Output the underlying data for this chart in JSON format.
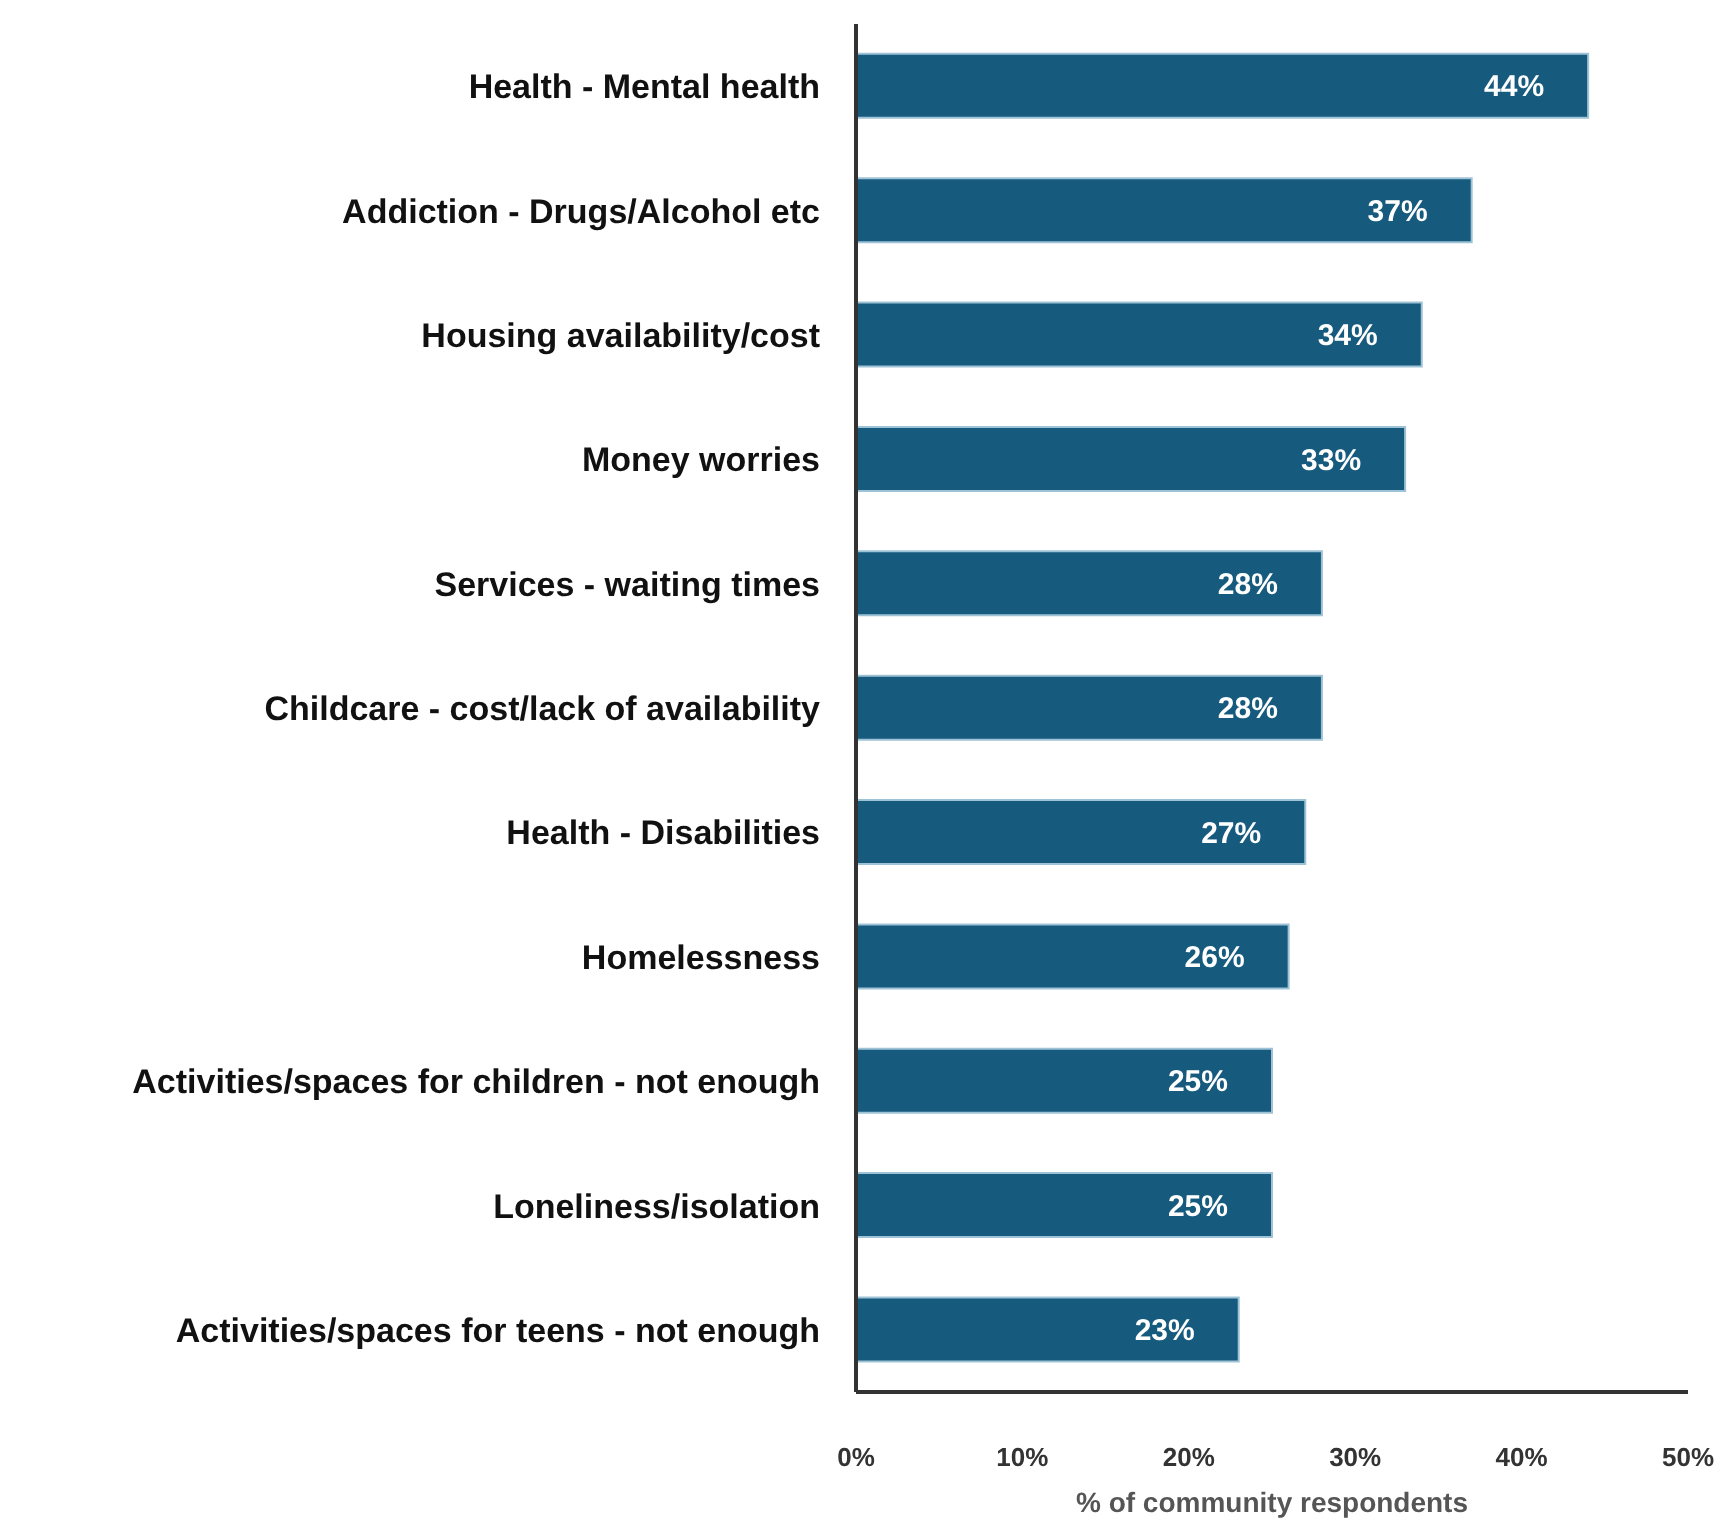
{
  "chart_data": {
    "type": "bar",
    "orientation": "horizontal",
    "xlabel": "% of community respondents",
    "categories": [
      "Health - Mental health",
      "Addiction - Drugs/Alcohol etc",
      "Housing availability/cost",
      "Money worries",
      "Services - waiting times",
      "Childcare - cost/lack of availability",
      "Health - Disabilities",
      "Homelessness",
      "Activities/spaces for children - not enough",
      "Loneliness/isolation",
      "Activities/spaces for teens - not enough"
    ],
    "values": [
      44,
      37,
      34,
      33,
      28,
      28,
      27,
      26,
      25,
      25,
      23
    ],
    "value_labels": [
      "44%",
      "37%",
      "34%",
      "33%",
      "28%",
      "28%",
      "27%",
      "26%",
      "25%",
      "25%",
      "23%"
    ],
    "color": "#165a7d",
    "xlim": [
      0,
      50
    ],
    "xticks": [
      {
        "value": 0,
        "label": "0%"
      },
      {
        "value": 10,
        "label": "10%"
      },
      {
        "value": 20,
        "label": "20%"
      },
      {
        "value": 30,
        "label": "30%"
      },
      {
        "value": 40,
        "label": "40%"
      },
      {
        "value": 50,
        "label": "50%"
      }
    ],
    "grid": false,
    "legend": false
  }
}
